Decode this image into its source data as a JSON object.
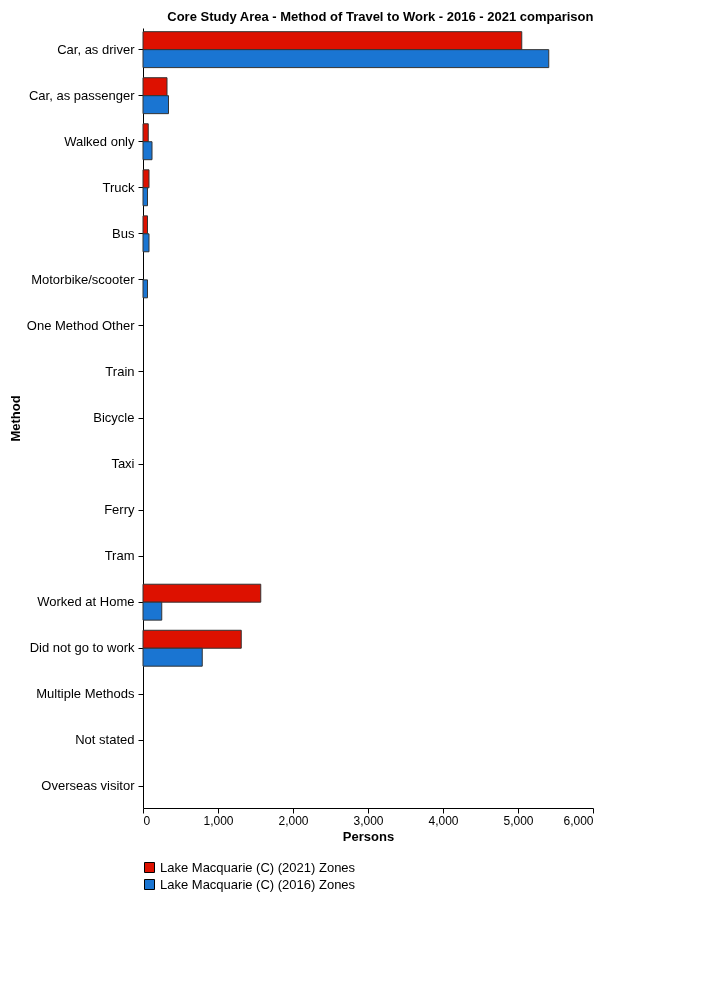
{
  "chart_data": {
    "type": "bar",
    "orientation": "horizontal",
    "title": "Core Study Area - Method of Travel to Work - 2016 - 2021 comparison",
    "xlabel": "Persons",
    "ylabel": "Method",
    "categories": [
      "Car, as driver",
      "Car, as passenger",
      "Walked only",
      "Truck",
      "Bus",
      "Motorbike/scooter",
      "One Method Other",
      "Train",
      "Bicycle",
      "Taxi",
      "Ferry",
      "Tram",
      "Worked at Home",
      "Did not go to work",
      "Multiple Methods",
      "Not stated",
      "Overseas visitor"
    ],
    "series": [
      {
        "name": "Lake Macquarie (C) (2021) Zones",
        "color": "#dd1100",
        "values": [
          5050,
          320,
          70,
          80,
          60,
          0,
          0,
          0,
          0,
          0,
          0,
          0,
          1570,
          1310,
          0,
          0,
          0
        ]
      },
      {
        "name": "Lake Macquarie (C) (2016) Zones",
        "color": "#1a75d2",
        "values": [
          5410,
          340,
          120,
          60,
          80,
          60,
          0,
          0,
          0,
          0,
          0,
          0,
          250,
          790,
          0,
          0,
          0
        ]
      }
    ],
    "xlim": [
      0,
      6000
    ],
    "xticks": [
      {
        "value": 0,
        "label": "0"
      },
      {
        "value": 1000,
        "label": "1,000"
      },
      {
        "value": 2000,
        "label": "2,000"
      },
      {
        "value": 3000,
        "label": "3,000"
      },
      {
        "value": 4000,
        "label": "4,000"
      },
      {
        "value": 5000,
        "label": "5,000"
      },
      {
        "value": 6000,
        "label": "6,000"
      }
    ],
    "grid": false,
    "legend": "bottom"
  }
}
